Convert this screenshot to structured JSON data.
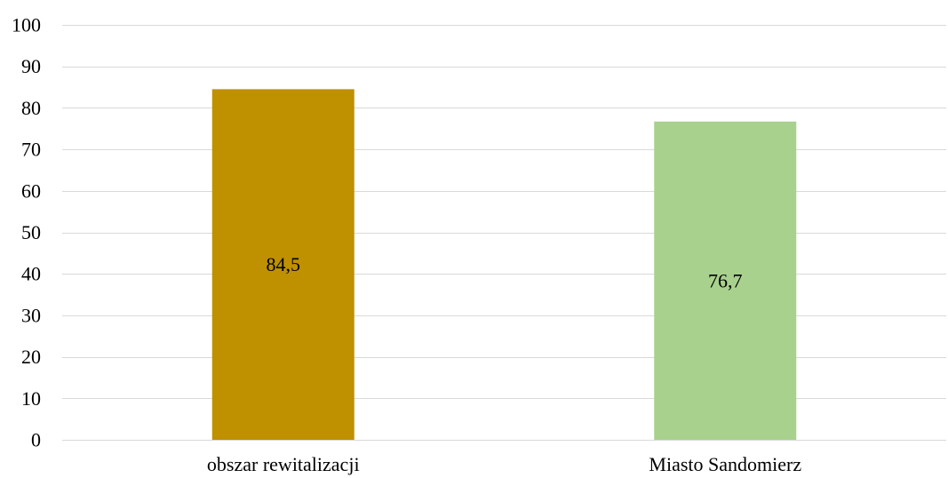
{
  "chart_data": {
    "type": "bar",
    "title": "",
    "xlabel": "",
    "ylabel": "",
    "categories": [
      "obszar rewitalizacji",
      "Miasto Sandomierz"
    ],
    "values": [
      84.5,
      76.7
    ],
    "data_labels": [
      "84,5",
      "76,7"
    ],
    "colors": [
      "#bf9000",
      "#a9d18e"
    ],
    "ylim": [
      0,
      100
    ],
    "yticks": [
      0,
      10,
      20,
      30,
      40,
      50,
      60,
      70,
      80,
      90,
      100
    ],
    "grid": true,
    "legend": "none"
  }
}
